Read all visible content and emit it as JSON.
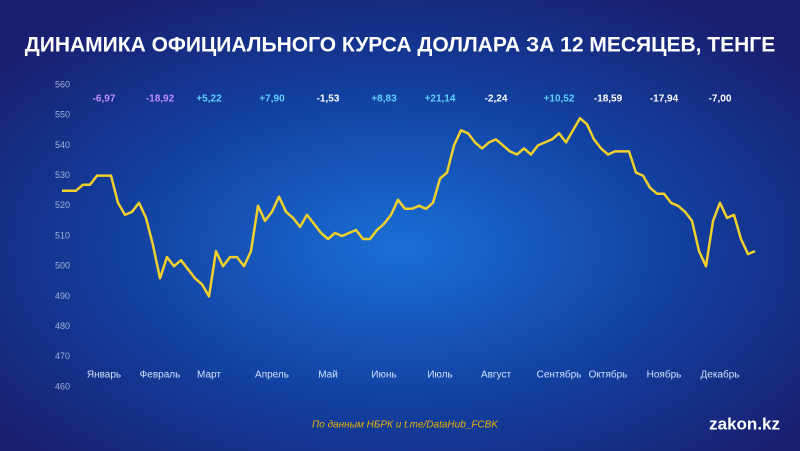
{
  "chart_data": {
    "type": "line",
    "title": "ДИНАМИКА ОФИЦИАЛЬНОГО КУРСА ДОЛЛАРА ЗА 12 МЕСЯЦЕВ, ТЕНГЕ",
    "categories": [
      null,
      null,
      null,
      null,
      null,
      null,
      "Январь",
      null,
      null,
      null,
      null,
      null,
      null,
      null,
      "Февраль",
      null,
      null,
      null,
      null,
      null,
      null,
      "Март",
      null,
      null,
      null,
      null,
      null,
      null,
      null,
      null,
      "Апрель",
      null,
      null,
      null,
      null,
      null,
      null,
      null,
      "Май",
      null,
      null,
      null,
      null,
      null,
      null,
      null,
      "Июнь",
      null,
      null,
      null,
      null,
      null,
      null,
      null,
      "Июль",
      null,
      null,
      null,
      null,
      null,
      null,
      null,
      "Август",
      null,
      null,
      null,
      null,
      null,
      null,
      null,
      null,
      "Сентябрь",
      null,
      null,
      null,
      null,
      null,
      null,
      "Октябрь",
      null,
      null,
      null,
      null,
      null,
      null,
      null,
      "Ноябрь",
      null,
      null,
      null,
      null,
      null,
      null,
      null,
      "Декабрь",
      null,
      null,
      null,
      null,
      null
    ],
    "values": [
      525,
      525,
      525,
      527,
      527,
      530,
      530,
      530,
      521,
      517,
      518,
      521,
      516,
      507,
      496,
      503,
      500,
      502,
      499,
      496,
      494,
      490,
      505,
      500,
      503,
      503,
      500,
      505,
      520,
      515,
      518,
      523,
      518,
      516,
      513,
      517,
      514,
      511,
      509,
      511,
      510,
      511,
      512,
      509,
      509,
      512,
      514,
      517,
      522,
      519,
      519,
      520,
      519,
      521,
      529,
      531,
      540,
      545,
      544,
      541,
      539,
      541,
      542,
      540,
      538,
      537,
      539,
      537,
      540,
      541,
      542,
      544,
      541,
      545,
      549,
      547,
      542,
      539,
      537,
      538,
      538,
      538,
      531,
      530,
      526,
      524,
      524,
      521,
      520,
      518,
      515,
      505,
      500,
      515,
      521,
      516,
      517,
      509,
      504,
      505
    ],
    "color": "#f2d02b",
    "ylim": [
      460,
      560
    ],
    "yticks": [
      460,
      470,
      480,
      490,
      500,
      510,
      520,
      530,
      540,
      550,
      560
    ],
    "grid": false,
    "annotations": [
      "-6,97",
      "-18,92",
      "+5,22",
      "+7,90",
      "-1,53",
      "+8,83",
      "+21,14",
      "-2,24",
      "+10,52",
      "-18,59",
      "-17,94",
      "-7,00"
    ],
    "annotation_colors": [
      "#c48bff",
      "#c48bff",
      "#5fd3ff",
      "#5fd3ff",
      "#ffffff",
      "#5fd3ff",
      "#5fd3ff",
      "#ffffff",
      "#5fd3ff",
      "#ffffff",
      "#ffffff",
      "#ffffff"
    ],
    "source": "По данным НБРК и t.me/DataHub_FCBK",
    "brand": "zakon.kz"
  }
}
